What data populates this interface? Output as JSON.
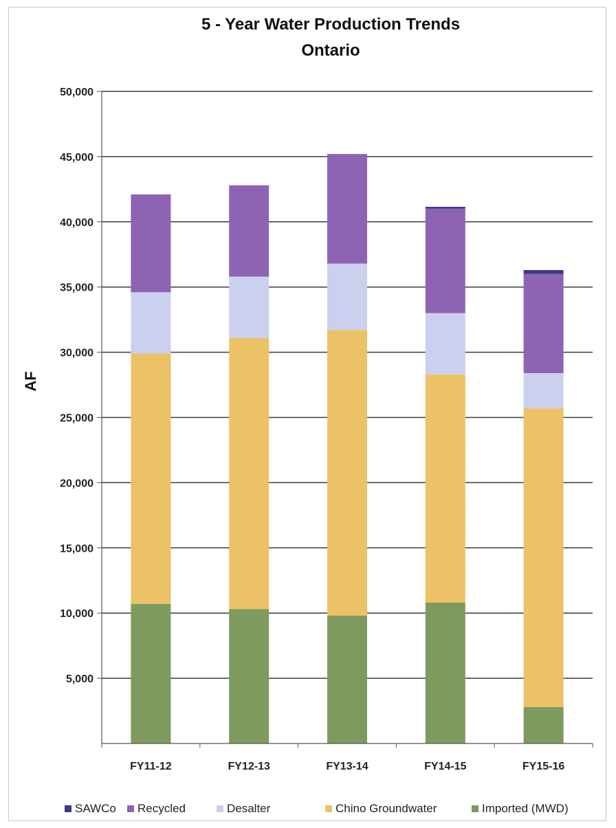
{
  "chart_data": {
    "type": "bar",
    "stacked": true,
    "title": "5 - Year Water Production Trends",
    "subtitle": "Ontario",
    "xlabel": "",
    "ylabel": "AF",
    "ylim": [
      0,
      50000
    ],
    "yticks": [
      "5,000",
      "10,000",
      "15,000",
      "20,000",
      "25,000",
      "30,000",
      "35,000",
      "40,000",
      "45,000",
      "50,000"
    ],
    "ytick_values": [
      5000,
      10000,
      15000,
      20000,
      25000,
      30000,
      35000,
      40000,
      45000,
      50000
    ],
    "categories": [
      "FY11-12",
      "FY12-13",
      "FY13-14",
      "FY14-15",
      "FY15-16"
    ],
    "grid": true,
    "legend_position": "bottom",
    "series": [
      {
        "name": "Imported (MWD)",
        "color": "#7f9a5e",
        "values": [
          10700,
          10300,
          9800,
          10800,
          2800
        ]
      },
      {
        "name": "Chino Groundwater",
        "color": "#ebc265",
        "values": [
          19200,
          20800,
          21900,
          17500,
          22900
        ]
      },
      {
        "name": "Desalter",
        "color": "#ccd0ef",
        "values": [
          4700,
          4700,
          5100,
          4700,
          2700
        ]
      },
      {
        "name": "Recycled",
        "color": "#8e63b4",
        "values": [
          7500,
          7000,
          8400,
          8000,
          7600
        ]
      },
      {
        "name": "SAWCo",
        "color": "#3a3a8a",
        "values": [
          0,
          0,
          0,
          150,
          300
        ]
      }
    ],
    "legend_order": [
      "SAWCo",
      "Recycled",
      "Desalter",
      "Chino Groundwater",
      "Imported (MWD)"
    ]
  }
}
